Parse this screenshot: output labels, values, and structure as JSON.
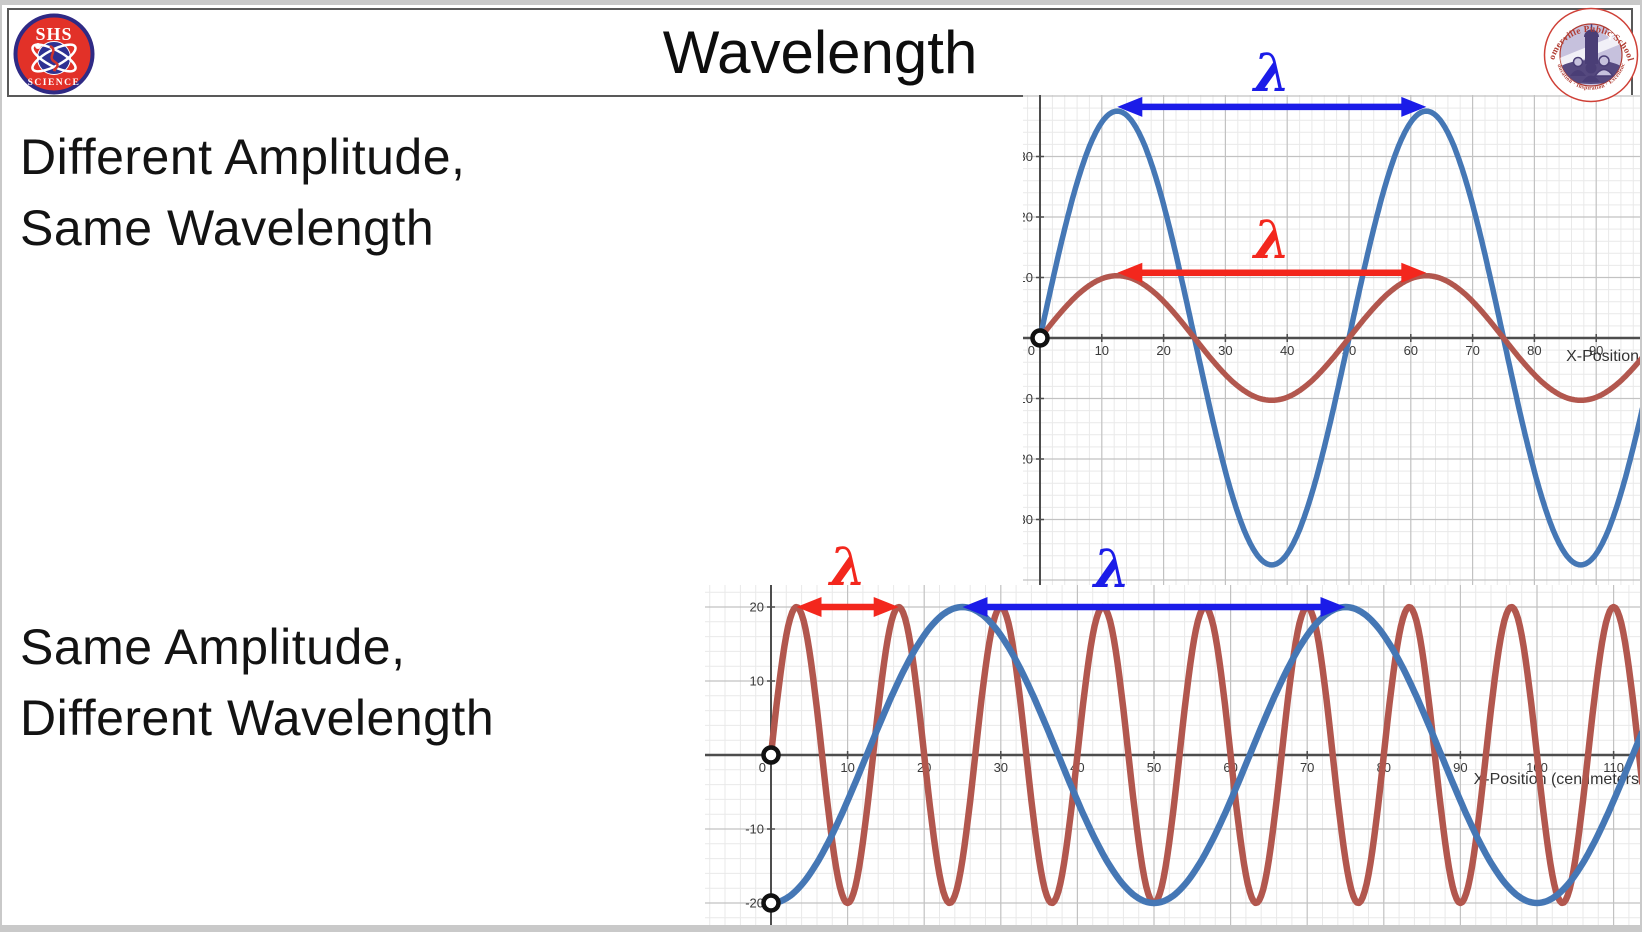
{
  "slide": {
    "title": "Wavelength",
    "lambda": "λ",
    "labels": {
      "top_left_line1": "Different Amplitude,",
      "top_left_line2": "Same Wavelength",
      "bottom_left_line1": "Same Amplitude,",
      "bottom_left_line2": "Different Wavelength"
    },
    "logo_left": {
      "line_top": "SHS",
      "line_bottom": "SCIENCE"
    },
    "logo_right": {
      "arc_top": "Somerville Public Schools",
      "arc_bottom": "Education · Inspiration · Excellence"
    }
  },
  "colors": {
    "wave_blue": "#4577b5",
    "wave_red": "#b2574e",
    "annot_blue": "#1b1ce8",
    "annot_red": "#f3271d",
    "axis": "#4d4d4d",
    "grid_major": "#c2c2c2",
    "grid_minor": "#e9e9e9",
    "tick_text": "#3a3a3a",
    "ring": "#111111"
  },
  "chart_data": [
    {
      "type": "line",
      "title": "Different Amplitude, Same Wavelength",
      "xlabel": "X-Position",
      "xlim": [
        -2.8,
        97.5
      ],
      "ylim": [
        -41.2,
        40.2
      ],
      "grid": {
        "minor_step": 2,
        "major_step": 10
      },
      "x_ticks": [
        0,
        10,
        20,
        30,
        40,
        50,
        60,
        70,
        80,
        90
      ],
      "y_ticks": [
        30,
        20,
        10,
        -10,
        -20,
        -30
      ],
      "y_tick_labels": [
        "30",
        "20",
        "10",
        "10",
        "20",
        "30"
      ],
      "series": [
        {
          "name": "large-amplitude-wave",
          "color_key": "wave_blue",
          "amplitude": 37.5,
          "wavelength": 50,
          "waveform": "sin",
          "equation": "y = 37.5·sin(2πx/50)"
        },
        {
          "name": "small-amplitude-wave",
          "color_key": "wave_red",
          "amplitude": 10.3,
          "wavelength": 50,
          "waveform": "sin",
          "equation": "y = 10.3·sin(2πx/50)"
        }
      ],
      "wavelength_arrows": [
        {
          "color_key": "annot_blue",
          "y": 38.2,
          "x1": 12.5,
          "x2": 62.5,
          "label": "λ"
        },
        {
          "color_key": "annot_red",
          "y": 10.8,
          "x1": 12.5,
          "x2": 62.5,
          "label": "λ"
        }
      ],
      "origin_markers": [
        {
          "x": 0,
          "y": 0
        }
      ]
    },
    {
      "type": "line",
      "title": "Same Amplitude, Different Wavelength",
      "xlabel": "X-Position (centimeters",
      "xlim": [
        -8.6,
        113.8
      ],
      "ylim": [
        -23,
        23
      ],
      "grid": {
        "minor_step": 2,
        "major_step": 10
      },
      "x_ticks": [
        0,
        10,
        20,
        30,
        40,
        50,
        60,
        70,
        80,
        90,
        100,
        110
      ],
      "y_ticks": [
        20,
        10,
        -10,
        -20
      ],
      "y_tick_labels": [
        "20",
        "10",
        "-10",
        "-20"
      ],
      "series": [
        {
          "name": "short-wavelength-wave",
          "color_key": "wave_red",
          "amplitude": 20,
          "wavelength": 13.333,
          "waveform": "sin",
          "equation": "y = 20·sin(2πx/13.33)"
        },
        {
          "name": "long-wavelength-wave",
          "color_key": "wave_blue",
          "amplitude": 20,
          "wavelength": 50,
          "waveform": "-cos",
          "equation": "y = -20·cos(2πx/50)"
        }
      ],
      "wavelength_arrows": [
        {
          "color_key": "annot_red",
          "y": 20,
          "x1": 3.33,
          "x2": 16.67,
          "label": "λ"
        },
        {
          "color_key": "annot_blue",
          "y": 20,
          "x1": 25,
          "x2": 75,
          "label": "λ"
        }
      ],
      "origin_markers": [
        {
          "x": 0,
          "y": 0
        },
        {
          "x": 0,
          "y": -20
        }
      ]
    }
  ]
}
